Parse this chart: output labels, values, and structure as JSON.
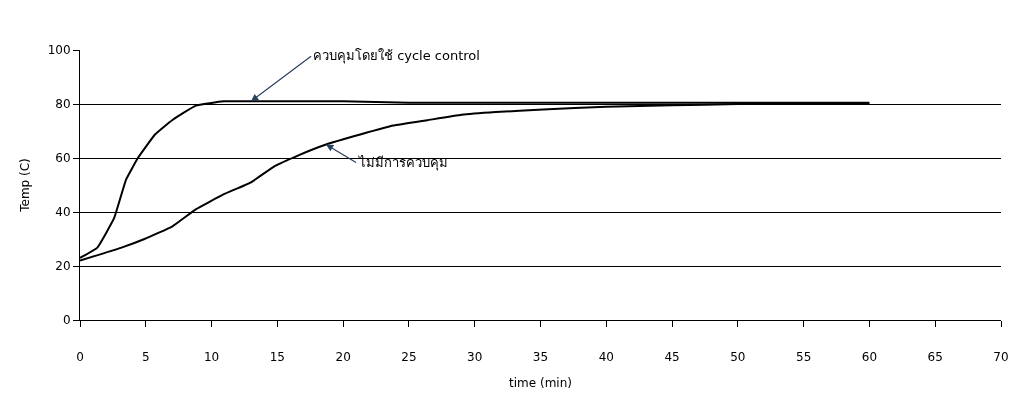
{
  "chart_data": {
    "type": "line",
    "xlabel": "time (min)",
    "ylabel": "Temp (C)",
    "xlim": [
      0,
      70
    ],
    "xticks": [
      0,
      5,
      10,
      15,
      20,
      25,
      30,
      35,
      40,
      45,
      50,
      55,
      60,
      65,
      70
    ],
    "ylim": [
      0,
      100
    ],
    "yticks": [
      0,
      20,
      40,
      60,
      80,
      100
    ],
    "grid": "y",
    "legend": false,
    "marker": "none",
    "line_style": "solid",
    "series": [
      {
        "name": "ควบคุมโดยใช้ cycle control",
        "color": "#000000",
        "x": [
          0,
          1.3,
          2.6,
          3.5,
          4.4,
          5.7,
          7,
          8.8,
          10.9,
          13,
          16,
          20,
          25,
          30,
          35,
          40,
          45,
          50,
          55,
          60
        ],
        "values": [
          23,
          26.7,
          37.8,
          52,
          60,
          68.7,
          74,
          79.4,
          81,
          81,
          81,
          81,
          80.5,
          80.5,
          80.5,
          80.5,
          80.5,
          80.5,
          80.5,
          80.5
        ]
      },
      {
        "name": "ไม่มีการควบคุม",
        "color": "#000000",
        "x": [
          0,
          3.1,
          4.9,
          7,
          8.8,
          10.9,
          13,
          14.8,
          16.6,
          18.7,
          21.3,
          23.8,
          26.4,
          29,
          31.6,
          35.2,
          40,
          45,
          50,
          55,
          60
        ],
        "values": [
          22,
          26.7,
          30,
          34.6,
          41,
          46.5,
          51,
          57,
          61,
          65,
          68.7,
          72,
          74,
          76,
          77,
          78,
          79,
          79.5,
          80,
          80,
          80
        ]
      }
    ]
  }
}
